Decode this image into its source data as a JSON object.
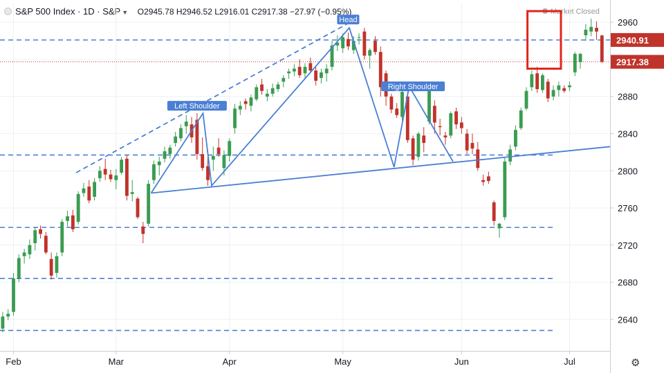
{
  "header": {
    "symbol": "S&P 500 Index · 1D · S&P",
    "open": "O2945.78",
    "high": "H2946.52",
    "low": "L2916.01",
    "close": "C2917.38",
    "change": "−27.97 (−0.95%)"
  },
  "market_status": "Market Closed",
  "icons": {
    "settings": "gear-icon",
    "market": "sun-icon",
    "menu": "chevron-down-icon"
  },
  "colors": {
    "up": "#3a9c51",
    "down": "#c0332b",
    "trend": "#4a7fd4",
    "highlight": "#e0251c",
    "last_price": "#c0332b",
    "level_label": "#c0332b"
  },
  "chart_data": {
    "type": "candlestick",
    "x_axis_labels": [
      {
        "label": "Feb",
        "index": 2
      },
      {
        "label": "Mar",
        "index": 21
      },
      {
        "label": "Apr",
        "index": 42
      },
      {
        "label": "May",
        "index": 63
      },
      {
        "label": "Jun",
        "index": 85
      },
      {
        "label": "Jul",
        "index": 105
      }
    ],
    "y_ticks": [
      2640,
      2680,
      2720,
      2760,
      2800,
      2840,
      2880,
      2920,
      2960
    ],
    "ylim": [
      2606,
      2981
    ],
    "xlim": [
      -0.5,
      112.5
    ],
    "price_labels": [
      {
        "label": "2940.91",
        "value": 2940.91,
        "style": "level"
      },
      {
        "label": "2917.38",
        "value": 2917.38,
        "style": "last"
      }
    ],
    "horizontal_levels": [
      2940.91,
      2817,
      2739,
      2684,
      2628
    ],
    "last_price": 2917.38,
    "annotations": [
      {
        "text": "Left Shoulder",
        "index": 36,
        "value": 2870
      },
      {
        "text": "Head",
        "index": 64,
        "value": 2963
      },
      {
        "text": "Right Shoulder",
        "index": 76,
        "value": 2891
      }
    ],
    "pattern_lines": [
      {
        "style": "solid",
        "points": [
          [
            27.5,
            2776
          ],
          [
            37.1,
            2862
          ],
          [
            38.7,
            2784
          ],
          [
            64.2,
            2954
          ],
          [
            72.5,
            2804
          ],
          [
            75.3,
            2891
          ],
          [
            83.4,
            2810
          ]
        ]
      },
      {
        "style": "solid",
        "points": [
          [
            27.5,
            2776
          ],
          [
            112.5,
            2826
          ]
        ]
      },
      {
        "style": "dashed",
        "points": [
          [
            13.6,
            2798
          ],
          [
            65.0,
            2962
          ]
        ]
      }
    ],
    "highlight_box": {
      "index_range": [
        97.2,
        103.4
      ],
      "value_range": [
        2910,
        2972
      ]
    },
    "candles": [
      {
        "o": 2630,
        "h": 2648,
        "l": 2626,
        "c": 2643
      },
      {
        "o": 2643,
        "h": 2651,
        "l": 2639,
        "c": 2646
      },
      {
        "o": 2648,
        "h": 2690,
        "l": 2644,
        "c": 2684
      },
      {
        "o": 2684,
        "h": 2710,
        "l": 2680,
        "c": 2706
      },
      {
        "o": 2708,
        "h": 2716,
        "l": 2700,
        "c": 2712
      },
      {
        "o": 2710,
        "h": 2726,
        "l": 2705,
        "c": 2720
      },
      {
        "o": 2722,
        "h": 2739,
        "l": 2714,
        "c": 2736
      },
      {
        "o": 2737,
        "h": 2741,
        "l": 2727,
        "c": 2732
      },
      {
        "o": 2730,
        "h": 2734,
        "l": 2710,
        "c": 2712
      },
      {
        "o": 2705,
        "h": 2712,
        "l": 2683,
        "c": 2687
      },
      {
        "o": 2690,
        "h": 2712,
        "l": 2685,
        "c": 2708
      },
      {
        "o": 2712,
        "h": 2748,
        "l": 2708,
        "c": 2745
      },
      {
        "o": 2746,
        "h": 2757,
        "l": 2740,
        "c": 2751
      },
      {
        "o": 2752,
        "h": 2758,
        "l": 2734,
        "c": 2737
      },
      {
        "o": 2745,
        "h": 2778,
        "l": 2742,
        "c": 2775
      },
      {
        "o": 2776,
        "h": 2787,
        "l": 2772,
        "c": 2781
      },
      {
        "o": 2783,
        "h": 2790,
        "l": 2765,
        "c": 2768
      },
      {
        "o": 2772,
        "h": 2792,
        "l": 2768,
        "c": 2788
      },
      {
        "o": 2792,
        "h": 2805,
        "l": 2788,
        "c": 2800
      },
      {
        "o": 2802,
        "h": 2813,
        "l": 2790,
        "c": 2796
      },
      {
        "o": 2796,
        "h": 2801,
        "l": 2788,
        "c": 2791
      },
      {
        "o": 2790,
        "h": 2802,
        "l": 2780,
        "c": 2795
      },
      {
        "o": 2798,
        "h": 2815,
        "l": 2796,
        "c": 2812
      },
      {
        "o": 2813,
        "h": 2817,
        "l": 2768,
        "c": 2773
      },
      {
        "o": 2775,
        "h": 2790,
        "l": 2767,
        "c": 2777
      },
      {
        "o": 2770,
        "h": 2772,
        "l": 2748,
        "c": 2750
      },
      {
        "o": 2740,
        "h": 2745,
        "l": 2722,
        "c": 2732
      },
      {
        "o": 2743,
        "h": 2790,
        "l": 2740,
        "c": 2786
      },
      {
        "o": 2790,
        "h": 2811,
        "l": 2786,
        "c": 2807
      },
      {
        "o": 2806,
        "h": 2815,
        "l": 2795,
        "c": 2810
      },
      {
        "o": 2813,
        "h": 2826,
        "l": 2809,
        "c": 2821
      },
      {
        "o": 2818,
        "h": 2828,
        "l": 2813,
        "c": 2825
      },
      {
        "o": 2830,
        "h": 2842,
        "l": 2826,
        "c": 2837
      },
      {
        "o": 2835,
        "h": 2850,
        "l": 2832,
        "c": 2846
      },
      {
        "o": 2848,
        "h": 2860,
        "l": 2840,
        "c": 2853
      },
      {
        "o": 2850,
        "h": 2858,
        "l": 2830,
        "c": 2836
      },
      {
        "o": 2855,
        "h": 2862,
        "l": 2812,
        "c": 2818
      },
      {
        "o": 2818,
        "h": 2836,
        "l": 2800,
        "c": 2803
      },
      {
        "o": 2805,
        "h": 2822,
        "l": 2784,
        "c": 2790
      },
      {
        "o": 2812,
        "h": 2826,
        "l": 2800,
        "c": 2816
      },
      {
        "o": 2825,
        "h": 2835,
        "l": 2815,
        "c": 2818
      },
      {
        "o": 2803,
        "h": 2822,
        "l": 2795,
        "c": 2817
      },
      {
        "o": 2816,
        "h": 2835,
        "l": 2810,
        "c": 2832
      },
      {
        "o": 2846,
        "h": 2872,
        "l": 2840,
        "c": 2867
      },
      {
        "o": 2866,
        "h": 2875,
        "l": 2860,
        "c": 2870
      },
      {
        "o": 2875,
        "h": 2878,
        "l": 2866,
        "c": 2872
      },
      {
        "o": 2870,
        "h": 2882,
        "l": 2864,
        "c": 2879
      },
      {
        "o": 2877,
        "h": 2893,
        "l": 2875,
        "c": 2890
      },
      {
        "o": 2893,
        "h": 2899,
        "l": 2882,
        "c": 2886
      },
      {
        "o": 2880,
        "h": 2888,
        "l": 2875,
        "c": 2883
      },
      {
        "o": 2883,
        "h": 2894,
        "l": 2880,
        "c": 2889
      },
      {
        "o": 2888,
        "h": 2896,
        "l": 2885,
        "c": 2893
      },
      {
        "o": 2896,
        "h": 2903,
        "l": 2890,
        "c": 2900
      },
      {
        "o": 2905,
        "h": 2910,
        "l": 2899,
        "c": 2907
      },
      {
        "o": 2907,
        "h": 2915,
        "l": 2902,
        "c": 2910
      },
      {
        "o": 2912,
        "h": 2920,
        "l": 2900,
        "c": 2903
      },
      {
        "o": 2905,
        "h": 2916,
        "l": 2900,
        "c": 2912
      },
      {
        "o": 2916,
        "h": 2922,
        "l": 2905,
        "c": 2908
      },
      {
        "o": 2908,
        "h": 2912,
        "l": 2892,
        "c": 2897
      },
      {
        "o": 2900,
        "h": 2910,
        "l": 2894,
        "c": 2906
      },
      {
        "o": 2905,
        "h": 2915,
        "l": 2896,
        "c": 2910
      },
      {
        "o": 2912,
        "h": 2940,
        "l": 2908,
        "c": 2935
      },
      {
        "o": 2935,
        "h": 2946,
        "l": 2929,
        "c": 2938
      },
      {
        "o": 2932,
        "h": 2948,
        "l": 2927,
        "c": 2944
      },
      {
        "o": 2942,
        "h": 2949,
        "l": 2930,
        "c": 2934
      },
      {
        "o": 2930,
        "h": 2945,
        "l": 2926,
        "c": 2940
      },
      {
        "o": 2944,
        "h": 2948,
        "l": 2936,
        "c": 2944
      },
      {
        "o": 2950,
        "h": 2954,
        "l": 2920,
        "c": 2924
      },
      {
        "o": 2924,
        "h": 2932,
        "l": 2910,
        "c": 2930
      },
      {
        "o": 2940,
        "h": 2945,
        "l": 2925,
        "c": 2928
      },
      {
        "o": 2928,
        "h": 2934,
        "l": 2880,
        "c": 2890
      },
      {
        "o": 2905,
        "h": 2908,
        "l": 2870,
        "c": 2880
      },
      {
        "o": 2880,
        "h": 2883,
        "l": 2862,
        "c": 2866
      },
      {
        "o": 2867,
        "h": 2873,
        "l": 2857,
        "c": 2860
      },
      {
        "o": 2858,
        "h": 2888,
        "l": 2854,
        "c": 2885
      },
      {
        "o": 2880,
        "h": 2885,
        "l": 2830,
        "c": 2833
      },
      {
        "o": 2835,
        "h": 2838,
        "l": 2806,
        "c": 2812
      },
      {
        "o": 2815,
        "h": 2842,
        "l": 2811,
        "c": 2840
      },
      {
        "o": 2838,
        "h": 2847,
        "l": 2820,
        "c": 2830
      },
      {
        "o": 2853,
        "h": 2892,
        "l": 2850,
        "c": 2886
      },
      {
        "o": 2870,
        "h": 2876,
        "l": 2840,
        "c": 2852
      },
      {
        "o": 2848,
        "h": 2856,
        "l": 2838,
        "c": 2847
      },
      {
        "o": 2838,
        "h": 2842,
        "l": 2828,
        "c": 2836
      },
      {
        "o": 2838,
        "h": 2864,
        "l": 2835,
        "c": 2862
      },
      {
        "o": 2864,
        "h": 2868,
        "l": 2845,
        "c": 2850
      },
      {
        "o": 2852,
        "h": 2858,
        "l": 2840,
        "c": 2846
      },
      {
        "o": 2840,
        "h": 2845,
        "l": 2818,
        "c": 2822
      },
      {
        "o": 2830,
        "h": 2840,
        "l": 2818,
        "c": 2824
      },
      {
        "o": 2823,
        "h": 2831,
        "l": 2800,
        "c": 2803
      },
      {
        "o": 2790,
        "h": 2796,
        "l": 2784,
        "c": 2788
      },
      {
        "o": 2794,
        "h": 2799,
        "l": 2786,
        "c": 2789
      },
      {
        "o": 2766,
        "h": 2768,
        "l": 2741,
        "c": 2746
      },
      {
        "o": 2738,
        "h": 2744,
        "l": 2728,
        "c": 2743
      },
      {
        "o": 2750,
        "h": 2815,
        "l": 2747,
        "c": 2810
      },
      {
        "o": 2810,
        "h": 2828,
        "l": 2806,
        "c": 2823
      },
      {
        "o": 2826,
        "h": 2849,
        "l": 2822,
        "c": 2844
      },
      {
        "o": 2846,
        "h": 2868,
        "l": 2844,
        "c": 2865
      },
      {
        "o": 2867,
        "h": 2890,
        "l": 2865,
        "c": 2886
      },
      {
        "o": 2890,
        "h": 2908,
        "l": 2886,
        "c": 2904
      },
      {
        "o": 2905,
        "h": 2912,
        "l": 2884,
        "c": 2888
      },
      {
        "o": 2887,
        "h": 2905,
        "l": 2884,
        "c": 2903
      },
      {
        "o": 2896,
        "h": 2899,
        "l": 2874,
        "c": 2878
      },
      {
        "o": 2880,
        "h": 2892,
        "l": 2876,
        "c": 2887
      },
      {
        "o": 2887,
        "h": 2896,
        "l": 2880,
        "c": 2892
      },
      {
        "o": 2889,
        "h": 2892,
        "l": 2884,
        "c": 2886
      },
      {
        "o": 2890,
        "h": 2896,
        "l": 2886,
        "c": 2892
      },
      {
        "o": 2906,
        "h": 2928,
        "l": 2902,
        "c": 2926
      },
      {
        "o": 2917,
        "h": 2927,
        "l": 2910,
        "c": 2926
      },
      {
        "o": 2946,
        "h": 2958,
        "l": 2940,
        "c": 2952
      },
      {
        "o": 2950,
        "h": 2964,
        "l": 2945,
        "c": 2955
      },
      {
        "o": 2954,
        "h": 2961,
        "l": 2941,
        "c": 2950
      },
      {
        "o": 2945.78,
        "h": 2946.52,
        "l": 2916.01,
        "c": 2917.38
      }
    ]
  }
}
